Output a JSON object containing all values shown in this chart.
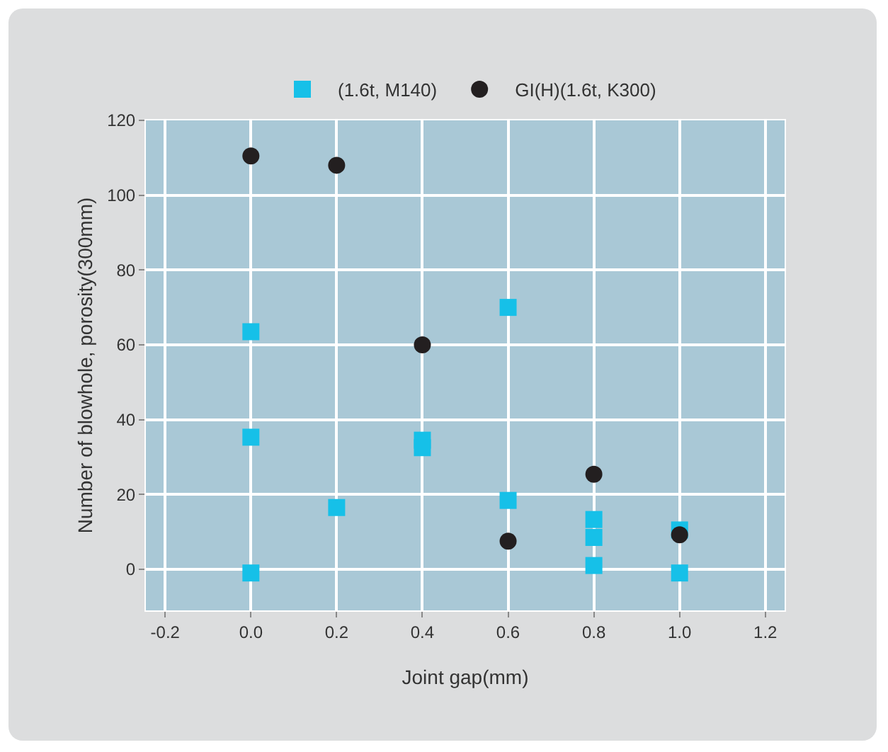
{
  "chart_data": {
    "type": "scatter",
    "xlabel": "Joint gap(mm)",
    "ylabel": "Number of blowhole, porosity(300mm)",
    "xlim": [
      -0.245,
      1.245
    ],
    "xticks": [
      {
        "value": -0.2,
        "label": "-0.2"
      },
      {
        "value": 0,
        "label": "0.0"
      },
      {
        "value": 0.2,
        "label": "0.2"
      },
      {
        "value": 0.4,
        "label": "0.4"
      },
      {
        "value": 0.6,
        "label": "0.6"
      },
      {
        "value": 0.8,
        "label": "0.8"
      },
      {
        "value": 1,
        "label": "1.0"
      },
      {
        "value": 1.2,
        "label": "1.2"
      }
    ],
    "ylim": [
      -11,
      120
    ],
    "yticks": [
      0,
      20,
      40,
      60,
      80,
      100,
      120
    ],
    "grid": true,
    "legend": "top",
    "series": [
      {
        "name": "(1.6t, M140)",
        "color": "#16c0e8",
        "marker": "square",
        "x": [
          0,
          0,
          0,
          0.2,
          0.4,
          0.4,
          0.6,
          0.6,
          0.8,
          0.8,
          0.8,
          1,
          1
        ],
        "values": [
          63.5,
          35.3,
          -1,
          16.5,
          34.5,
          32.5,
          70,
          18.4,
          13.3,
          8.5,
          1,
          10.5,
          -1
        ]
      },
      {
        "name": "GI(H)(1.6t, K300)",
        "color": "#231f20",
        "marker": "circle",
        "x": [
          0,
          0.2,
          0.4,
          0.6,
          0.8,
          1
        ],
        "values": [
          110.5,
          108,
          60,
          7.5,
          25.4,
          9.2
        ]
      }
    ]
  }
}
